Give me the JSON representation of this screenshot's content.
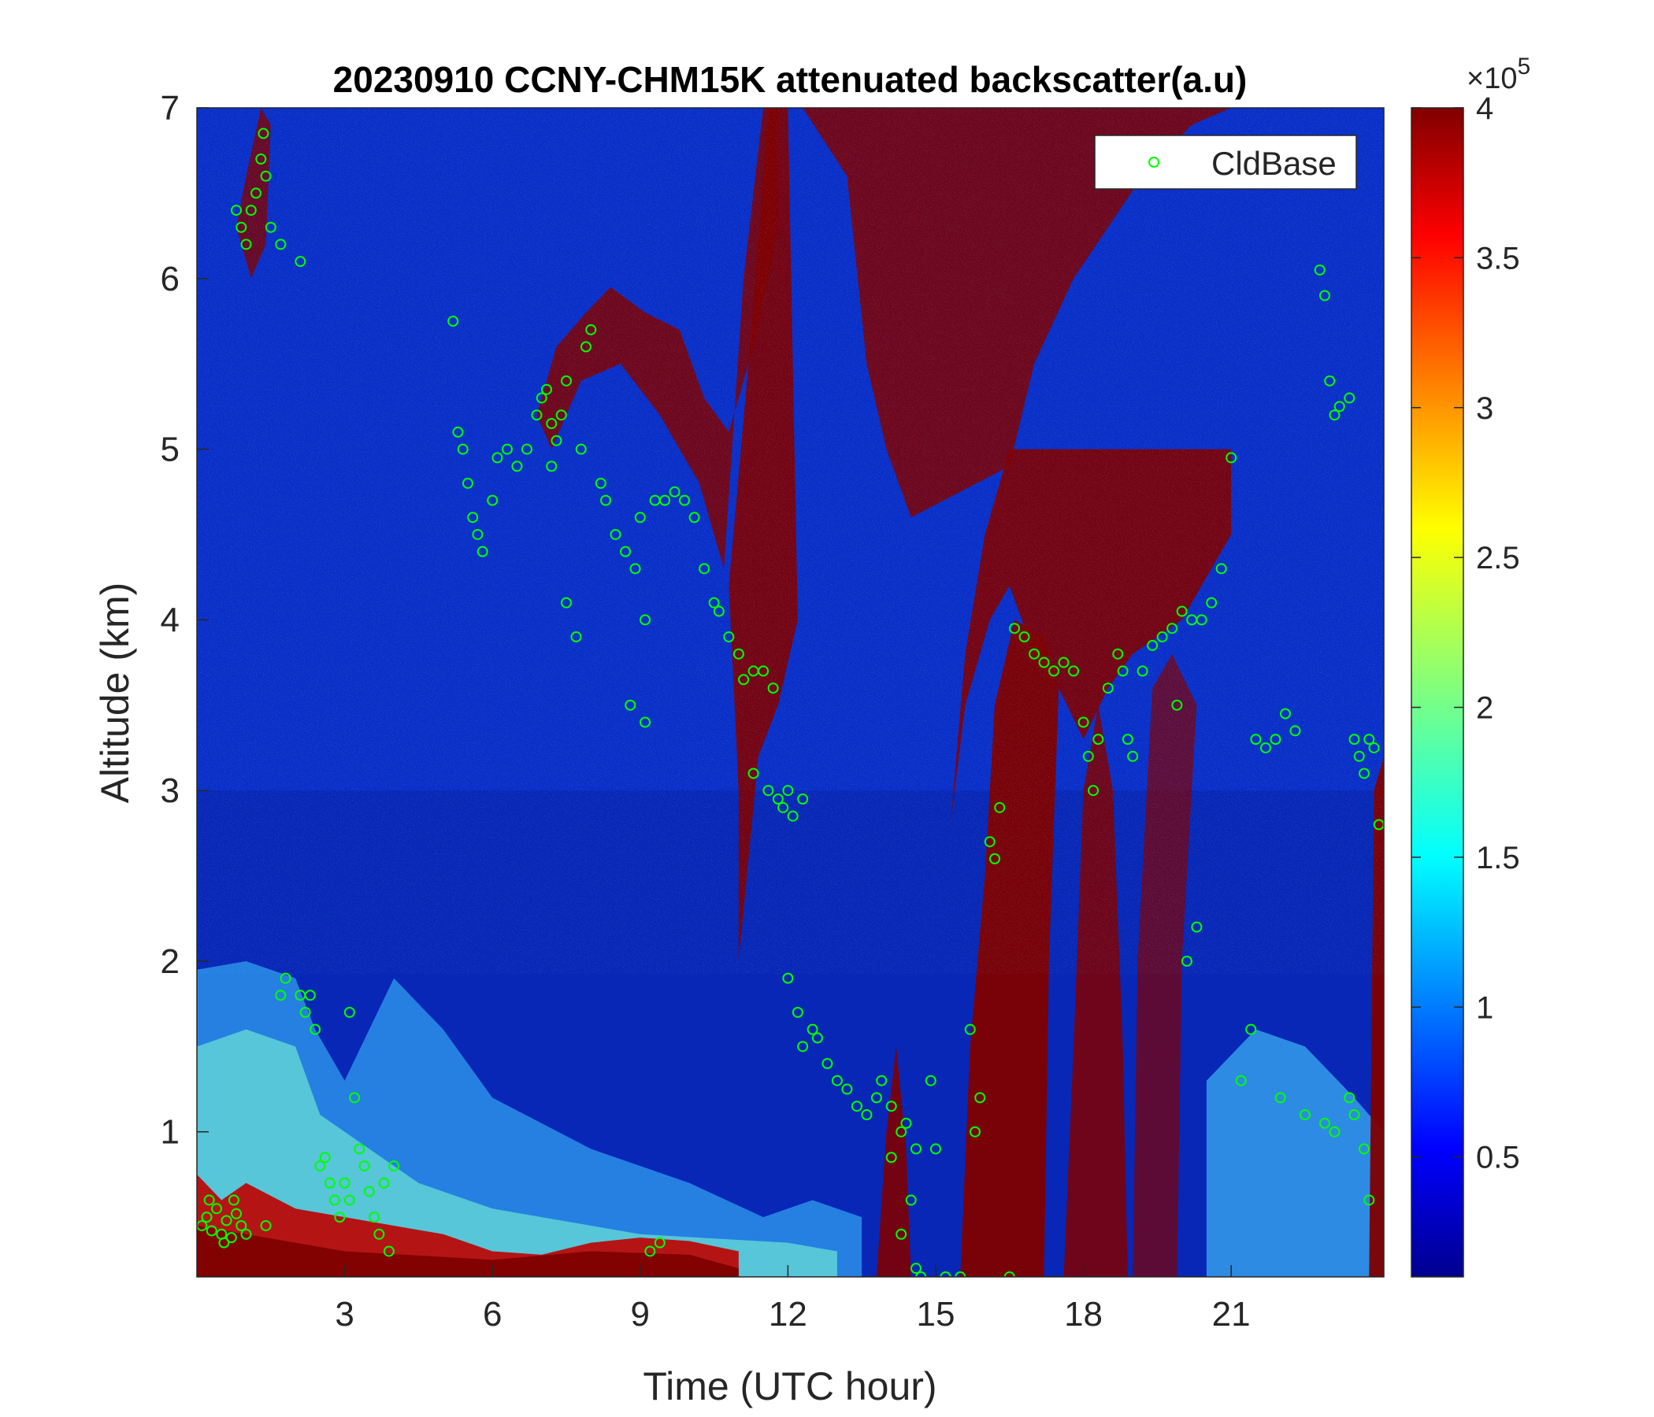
{
  "chart_data": {
    "type": "heatmap",
    "title": "20230910 CCNY-CHM15K attenuated backscatter(a.u)",
    "xlabel": "Time (UTC hour)",
    "ylabel": "Altitude (km)",
    "xlim": [
      0,
      24.1
    ],
    "ylim": [
      0.15,
      7
    ],
    "xticks": [
      3,
      6,
      9,
      12,
      15,
      18,
      21
    ],
    "xtick_labels": [
      "3",
      "6",
      "9",
      "12",
      "15",
      "18",
      "21"
    ],
    "yticks": [
      1,
      2,
      3,
      4,
      5,
      6,
      7
    ],
    "ytick_labels": [
      "1",
      "2",
      "3",
      "4",
      "5",
      "6",
      "7"
    ],
    "colormap": "jet",
    "colorbar": {
      "lim": [
        0.1,
        4.0
      ],
      "ticks": [
        0.5,
        1,
        1.5,
        2,
        2.5,
        3,
        3.5,
        4
      ],
      "tick_labels": [
        "0.5",
        "1",
        "1.5",
        "2",
        "2.5",
        "3",
        "3.5",
        "4"
      ],
      "exponent_base": "×10",
      "exponent_power": "5"
    },
    "legend": {
      "position": "top-right",
      "entries": [
        "CldBase"
      ]
    },
    "colors": {
      "marker": "#00ff00",
      "saturated": "#800000",
      "background": "#0a2fc8"
    },
    "series": [
      {
        "name": "CldBase",
        "marker": "circle",
        "points": [
          [
            0.1,
            0.45
          ],
          [
            0.2,
            0.5
          ],
          [
            0.3,
            0.42
          ],
          [
            0.4,
            0.55
          ],
          [
            0.5,
            0.4
          ],
          [
            0.6,
            0.48
          ],
          [
            0.7,
            0.38
          ],
          [
            0.8,
            0.52
          ],
          [
            0.9,
            0.45
          ],
          [
            1.0,
            0.4
          ],
          [
            0.25,
            0.6
          ],
          [
            0.55,
            0.35
          ],
          [
            0.75,
            0.6
          ],
          [
            0.8,
            6.4
          ],
          [
            0.9,
            6.3
          ],
          [
            1.0,
            6.2
          ],
          [
            1.1,
            6.4
          ],
          [
            1.2,
            6.5
          ],
          [
            1.3,
            6.7
          ],
          [
            1.35,
            6.85
          ],
          [
            1.4,
            6.6
          ],
          [
            1.5,
            6.3
          ],
          [
            1.7,
            6.2
          ],
          [
            2.1,
            6.1
          ],
          [
            1.4,
            0.45
          ],
          [
            1.7,
            1.8
          ],
          [
            1.8,
            1.9
          ],
          [
            2.1,
            1.8
          ],
          [
            2.2,
            1.7
          ],
          [
            2.3,
            1.8
          ],
          [
            2.4,
            1.6
          ],
          [
            2.5,
            0.8
          ],
          [
            2.6,
            0.85
          ],
          [
            2.7,
            0.7
          ],
          [
            2.8,
            0.6
          ],
          [
            2.9,
            0.5
          ],
          [
            3.0,
            0.7
          ],
          [
            3.1,
            0.6
          ],
          [
            3.1,
            1.7
          ],
          [
            3.2,
            1.2
          ],
          [
            3.3,
            0.9
          ],
          [
            3.4,
            0.8
          ],
          [
            3.5,
            0.65
          ],
          [
            3.6,
            0.5
          ],
          [
            3.7,
            0.4
          ],
          [
            3.8,
            0.7
          ],
          [
            3.9,
            0.3
          ],
          [
            4.0,
            0.8
          ],
          [
            5.2,
            5.75
          ],
          [
            5.3,
            5.1
          ],
          [
            5.4,
            5.0
          ],
          [
            5.5,
            4.8
          ],
          [
            5.6,
            4.6
          ],
          [
            5.7,
            4.5
          ],
          [
            5.8,
            4.4
          ],
          [
            6.0,
            4.7
          ],
          [
            6.1,
            4.95
          ],
          [
            6.3,
            5.0
          ],
          [
            6.5,
            4.9
          ],
          [
            6.7,
            5.0
          ],
          [
            6.9,
            5.2
          ],
          [
            7.0,
            5.3
          ],
          [
            7.1,
            5.35
          ],
          [
            7.2,
            5.15
          ],
          [
            7.3,
            5.05
          ],
          [
            7.4,
            5.2
          ],
          [
            7.5,
            5.4
          ],
          [
            7.2,
            4.9
          ],
          [
            7.5,
            4.1
          ],
          [
            7.7,
            3.9
          ],
          [
            7.8,
            5.0
          ],
          [
            7.9,
            5.6
          ],
          [
            8.0,
            5.7
          ],
          [
            8.2,
            4.8
          ],
          [
            8.3,
            4.7
          ],
          [
            8.5,
            4.5
          ],
          [
            8.7,
            4.4
          ],
          [
            8.9,
            4.3
          ],
          [
            9.0,
            4.6
          ],
          [
            9.1,
            4.0
          ],
          [
            9.3,
            4.7
          ],
          [
            9.5,
            4.7
          ],
          [
            9.7,
            4.75
          ],
          [
            9.9,
            4.7
          ],
          [
            10.1,
            4.6
          ],
          [
            8.8,
            3.5
          ],
          [
            9.1,
            3.4
          ],
          [
            9.2,
            0.3
          ],
          [
            9.4,
            0.35
          ],
          [
            10.3,
            4.3
          ],
          [
            10.5,
            4.1
          ],
          [
            10.6,
            4.05
          ],
          [
            10.8,
            3.9
          ],
          [
            11.0,
            3.8
          ],
          [
            11.1,
            3.65
          ],
          [
            11.3,
            3.7
          ],
          [
            11.5,
            3.7
          ],
          [
            11.7,
            3.6
          ],
          [
            11.3,
            3.1
          ],
          [
            11.6,
            3.0
          ],
          [
            11.8,
            2.95
          ],
          [
            11.9,
            2.9
          ],
          [
            12.0,
            3.0
          ],
          [
            12.1,
            2.85
          ],
          [
            12.3,
            2.95
          ],
          [
            12.0,
            1.9
          ],
          [
            12.2,
            1.7
          ],
          [
            12.3,
            1.5
          ],
          [
            12.5,
            1.6
          ],
          [
            12.6,
            1.55
          ],
          [
            12.8,
            1.4
          ],
          [
            13.0,
            1.3
          ],
          [
            13.2,
            1.25
          ],
          [
            13.4,
            1.15
          ],
          [
            13.6,
            1.1
          ],
          [
            13.8,
            1.2
          ],
          [
            13.9,
            1.3
          ],
          [
            14.1,
            1.15
          ],
          [
            14.3,
            1.0
          ],
          [
            14.4,
            1.05
          ],
          [
            14.6,
            0.9
          ],
          [
            14.1,
            0.85
          ],
          [
            14.3,
            0.4
          ],
          [
            14.5,
            0.6
          ],
          [
            14.6,
            0.2
          ],
          [
            14.7,
            0.15
          ],
          [
            14.9,
            1.3
          ],
          [
            15.0,
            0.9
          ],
          [
            15.2,
            0.15
          ],
          [
            15.5,
            0.15
          ],
          [
            15.7,
            1.6
          ],
          [
            15.8,
            1.0
          ],
          [
            15.9,
            1.2
          ],
          [
            16.1,
            2.7
          ],
          [
            16.2,
            2.6
          ],
          [
            16.3,
            2.9
          ],
          [
            16.5,
            0.15
          ],
          [
            16.6,
            3.95
          ],
          [
            16.8,
            3.9
          ],
          [
            17.0,
            3.8
          ],
          [
            17.2,
            3.75
          ],
          [
            17.4,
            3.7
          ],
          [
            17.6,
            3.75
          ],
          [
            17.8,
            3.7
          ],
          [
            18.0,
            3.4
          ],
          [
            18.1,
            3.2
          ],
          [
            18.2,
            3.0
          ],
          [
            18.3,
            3.3
          ],
          [
            18.5,
            3.6
          ],
          [
            18.7,
            3.8
          ],
          [
            18.8,
            3.7
          ],
          [
            18.9,
            3.3
          ],
          [
            19.0,
            3.2
          ],
          [
            19.2,
            3.7
          ],
          [
            19.4,
            3.85
          ],
          [
            19.6,
            3.9
          ],
          [
            19.8,
            3.95
          ],
          [
            20.0,
            4.05
          ],
          [
            20.2,
            4.0
          ],
          [
            20.4,
            4.0
          ],
          [
            20.6,
            4.1
          ],
          [
            20.8,
            4.3
          ],
          [
            19.9,
            3.5
          ],
          [
            20.1,
            2.0
          ],
          [
            20.3,
            2.2
          ],
          [
            21.0,
            4.95
          ],
          [
            21.2,
            1.3
          ],
          [
            21.4,
            1.6
          ],
          [
            21.5,
            3.3
          ],
          [
            21.7,
            3.25
          ],
          [
            21.9,
            3.3
          ],
          [
            22.1,
            3.45
          ],
          [
            22.3,
            3.35
          ],
          [
            22.0,
            1.2
          ],
          [
            22.5,
            1.1
          ],
          [
            22.8,
            6.05
          ],
          [
            22.9,
            5.9
          ],
          [
            23.0,
            5.4
          ],
          [
            23.1,
            5.2
          ],
          [
            23.2,
            5.25
          ],
          [
            23.4,
            5.3
          ],
          [
            23.5,
            3.3
          ],
          [
            23.6,
            3.2
          ],
          [
            23.7,
            3.1
          ],
          [
            23.8,
            3.3
          ],
          [
            23.9,
            3.25
          ],
          [
            24.0,
            2.8
          ],
          [
            23.5,
            1.1
          ],
          [
            23.7,
            0.9
          ],
          [
            23.8,
            0.6
          ],
          [
            23.4,
            1.2
          ],
          [
            23.1,
            1.0
          ],
          [
            22.9,
            1.05
          ]
        ]
      }
    ]
  }
}
